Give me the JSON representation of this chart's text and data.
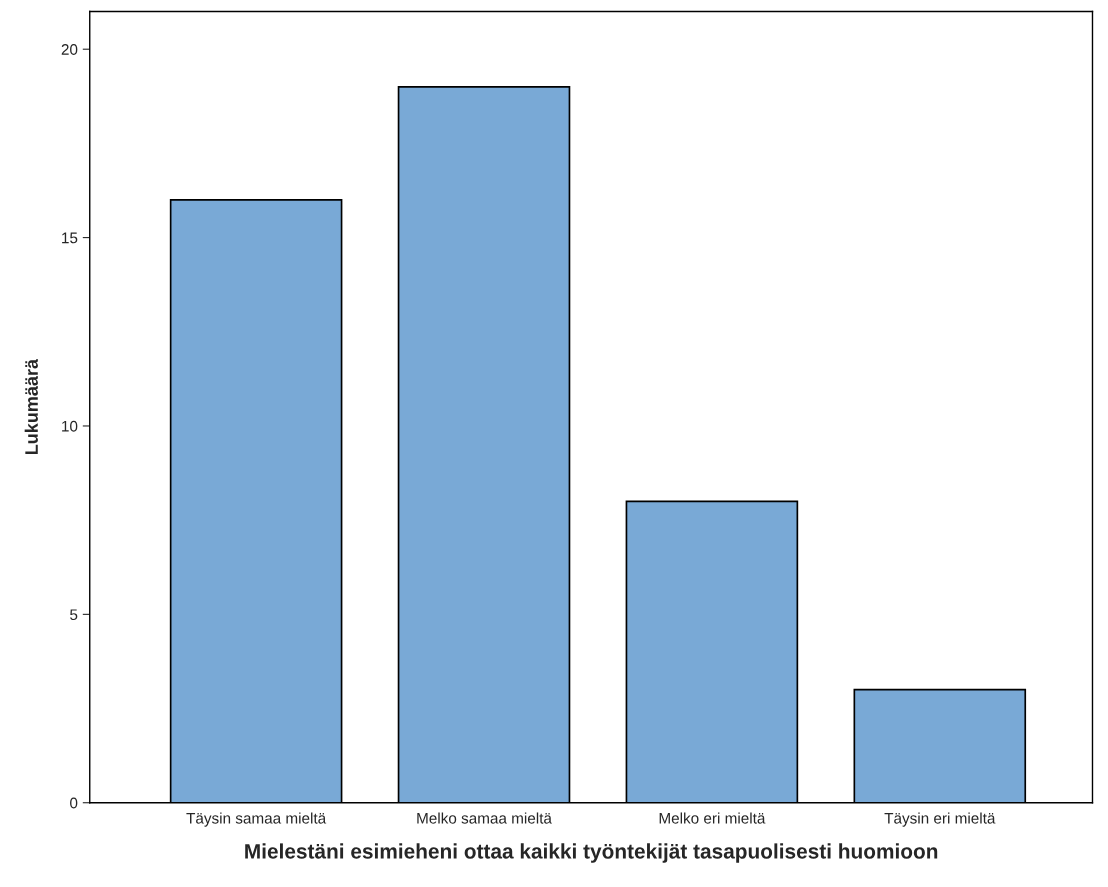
{
  "chart_data": {
    "type": "bar",
    "xlabel": "Mielestäni esimieheni ottaa kaikki työntekijät tasapuolisesti huomioon",
    "ylabel": "Lukumäärä",
    "categories": [
      "Täysin samaa mieltä",
      "Melko samaa mieltä",
      "Melko eri mieltä",
      "Täysin eri mieltä"
    ],
    "values": [
      16,
      19,
      8,
      3
    ],
    "color": "#79a9d6",
    "ylim": [
      0,
      21
    ],
    "yticks": [
      0,
      5,
      10,
      15,
      20
    ],
    "grid": false,
    "legend": false
  }
}
